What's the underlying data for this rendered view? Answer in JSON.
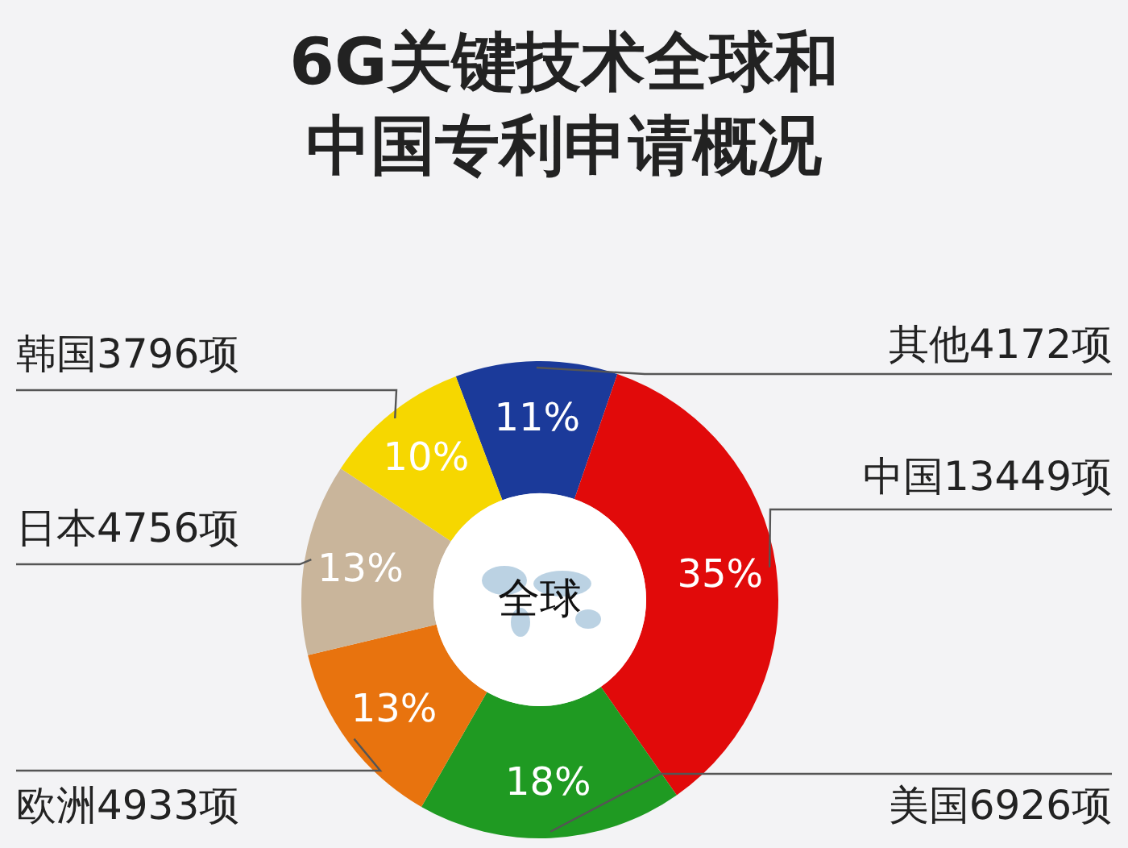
{
  "chart_data": {
    "type": "donut",
    "title": "6G关键技术全球和中国专利申请概况",
    "categories": [
      "其他4172项",
      "中国13449项",
      "美国6926项",
      "欧洲4933项",
      "日本4756项",
      "韩国3796项"
    ],
    "values": [
      11,
      35,
      18,
      13,
      13,
      10
    ],
    "colors": [
      "#1b3a9a",
      "#e10a0a",
      "#1f9a22",
      "#e8730e",
      "#c9b59b",
      "#f6d700"
    ],
    "value_labels": [
      "11%",
      "35%",
      "18%",
      "13%",
      "13%",
      "10%"
    ],
    "annotations": [
      "全球"
    ]
  }
}
